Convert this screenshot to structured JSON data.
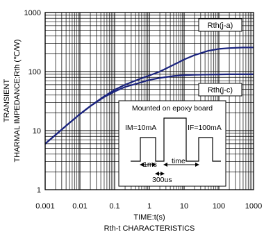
{
  "chart_data": {
    "type": "line",
    "scale": {
      "x": "log",
      "y": "log"
    },
    "xlim": [
      0.001,
      1000
    ],
    "ylim": [
      1,
      1000
    ],
    "x_ticks": [
      "0.001",
      "0.01",
      "0.1",
      "1",
      "10",
      "100",
      "1000"
    ],
    "y_ticks": [
      "1",
      "10",
      "100",
      "1000"
    ],
    "xlabel": "TIME:t(s)",
    "ylabel_line1": "TRANSIENT",
    "ylabel_line2": "THARMAL IMPEDANCE:Rth (℃/W)",
    "caption": "Rth-t CHARACTERISTICS",
    "grid": true,
    "line_color": "#1a237e",
    "series": [
      {
        "name": "Rth(j-a)",
        "x": [
          0.001,
          0.002,
          0.005,
          0.01,
          0.02,
          0.05,
          0.1,
          0.2,
          0.5,
          1,
          2,
          5,
          10,
          20,
          50,
          100,
          200,
          500,
          1000
        ],
        "values": [
          6,
          8.5,
          13.5,
          19,
          26,
          38,
          49,
          60,
          74,
          86,
          100,
          130,
          160,
          190,
          225,
          242,
          250,
          255,
          256
        ]
      },
      {
        "name": "Rth(j-c)",
        "x": [
          0.001,
          0.002,
          0.005,
          0.01,
          0.02,
          0.05,
          0.1,
          0.2,
          0.5,
          1,
          2,
          5,
          10,
          20,
          50,
          100,
          200,
          500,
          1000
        ],
        "values": [
          6,
          8.5,
          13.5,
          19,
          26,
          37,
          46,
          55,
          64,
          72,
          78,
          84,
          87,
          88,
          89,
          89.5,
          90,
          90,
          90
        ]
      }
    ],
    "inset": {
      "title": "Mounted on epoxy board",
      "im_label": "IM=10mA",
      "if_label": "IF=100mA",
      "t1_label": "1ms",
      "time_label": "time",
      "t2_label": "300us"
    }
  }
}
